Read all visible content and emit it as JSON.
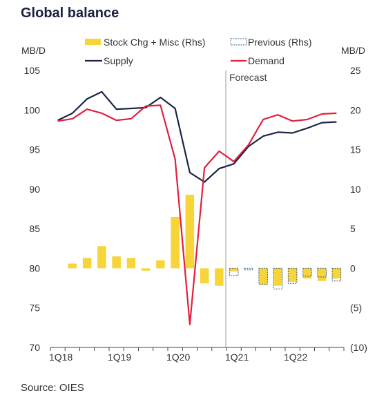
{
  "title": "Global balance",
  "source": "Source: OIES",
  "colors": {
    "supply": "#1b2347",
    "demand": "#e0203c",
    "stock_bar": "#f7d437",
    "previous_bar": "#3a5a8c",
    "forecast_line": "#999999",
    "axis": "#444444"
  },
  "chart_data": {
    "type": "bar+line",
    "left_axis": {
      "label": "MB/D",
      "range": [
        70,
        105
      ],
      "ticks": [
        "70",
        "75",
        "80",
        "85",
        "90",
        "95",
        "100",
        "105"
      ]
    },
    "right_axis": {
      "label": "MB/D",
      "range": [
        -10,
        25
      ],
      "ticks": [
        "(10)",
        "(5)",
        "0",
        "5",
        "10",
        "15",
        "20",
        "25"
      ]
    },
    "x_axis": {
      "categories": [
        "1Q18",
        "2Q18",
        "3Q18",
        "4Q18",
        "1Q19",
        "2Q19",
        "3Q19",
        "4Q19",
        "1Q20",
        "2Q20",
        "3Q20",
        "4Q20",
        "1Q21",
        "2Q21",
        "3Q21",
        "4Q21",
        "1Q22",
        "2Q22",
        "3Q22",
        "4Q22"
      ],
      "tick_labels": [
        "1Q18",
        "1Q19",
        "1Q20",
        "1Q21",
        "1Q22"
      ]
    },
    "forecast_label": "Forecast",
    "forecast_start_index": 12,
    "legend": {
      "stock": "Stock Chg + Misc (Rhs)",
      "previous": "Previous (Rhs)",
      "supply": "Supply",
      "demand": "Demand"
    },
    "series": [
      {
        "name": "Supply",
        "axis": "left",
        "type": "line",
        "values": [
          98.7,
          99.6,
          101.4,
          102.3,
          100.1,
          100.2,
          100.3,
          101.6,
          100.2,
          92.1,
          90.9,
          92.6,
          93.2,
          95.4,
          96.7,
          97.2,
          97.1,
          97.7,
          98.4,
          98.5
        ]
      },
      {
        "name": "Demand",
        "axis": "left",
        "type": "line",
        "values": [
          98.6,
          98.9,
          100.1,
          99.6,
          98.7,
          98.9,
          100.5,
          100.6,
          93.8,
          72.9,
          92.7,
          94.8,
          93.5,
          95.6,
          98.8,
          99.4,
          98.6,
          98.8,
          99.5,
          99.6
        ]
      },
      {
        "name": "Stock Chg + Misc (Rhs)",
        "axis": "right",
        "type": "bar",
        "values": [
          0,
          0.6,
          1.3,
          2.8,
          1.5,
          1.3,
          -0.3,
          1.0,
          6.5,
          9.3,
          -1.9,
          -2.2,
          -0.4,
          0,
          -2.1,
          -2.2,
          -1.7,
          -1.3,
          -1.6,
          -1.3
        ]
      },
      {
        "name": "Previous (Rhs)",
        "axis": "right",
        "type": "bar",
        "values": [
          null,
          null,
          null,
          null,
          null,
          null,
          null,
          null,
          null,
          null,
          null,
          null,
          -0.9,
          -0.2,
          -2.0,
          -2.6,
          -1.9,
          -1.0,
          -1.1,
          -1.6
        ]
      }
    ]
  }
}
